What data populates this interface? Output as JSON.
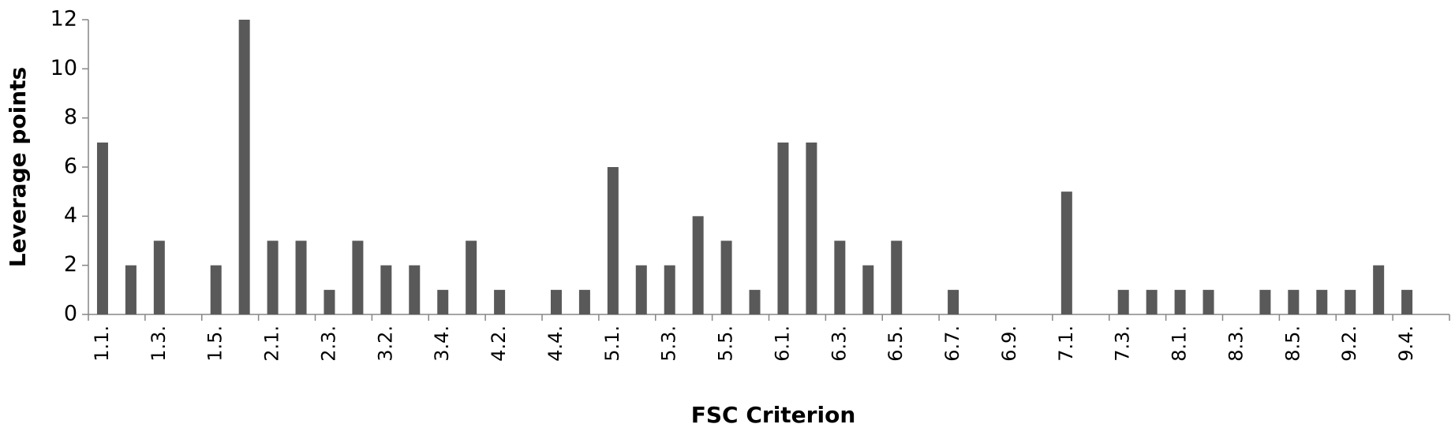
{
  "chart_data": {
    "type": "bar",
    "y_label": "Leverage points",
    "x_label": "FSC Criterion",
    "categories": [
      "1.1.",
      null,
      "1.3.",
      null,
      "1.5.",
      null,
      "2.1.",
      null,
      "2.3.",
      null,
      "3.2.",
      null,
      "3.4.",
      null,
      "4.2.",
      null,
      "4.4.",
      null,
      "5.1.",
      null,
      "5.3.",
      null,
      "5.5.",
      null,
      "6.1.",
      null,
      "6.3.",
      null,
      "6.5.",
      null,
      "6.7.",
      null,
      "6.9.",
      null,
      "7.1.",
      null,
      "7.3.",
      null,
      "8.1.",
      null,
      "8.3.",
      null,
      "8.5.",
      null,
      "9.2.",
      null,
      "9.4.",
      null
    ],
    "values": [
      7,
      2,
      3,
      0,
      2,
      12,
      3,
      3,
      1,
      3,
      2,
      2,
      1,
      3,
      1,
      0,
      1,
      1,
      6,
      2,
      2,
      4,
      3,
      1,
      7,
      7,
      3,
      2,
      3,
      0,
      1,
      0,
      0,
      0,
      5,
      0,
      1,
      1,
      1,
      1,
      0,
      1,
      1,
      1,
      1,
      2,
      1,
      0
    ],
    "color": "#595959",
    "ylim": [
      0,
      12
    ],
    "yticks": [
      0,
      2,
      4,
      6,
      8,
      10,
      12
    ],
    "grid": false
  }
}
